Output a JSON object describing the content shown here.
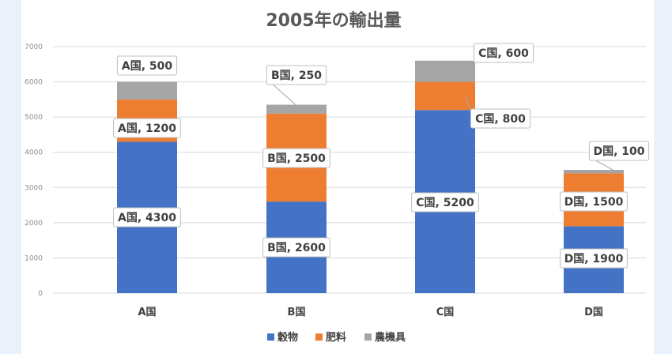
{
  "chart_data": {
    "type": "bar",
    "stacked": true,
    "title": "2005年の輸出量",
    "categories": [
      "A国",
      "B国",
      "C国",
      "D国"
    ],
    "series": [
      {
        "name": "穀物",
        "values": [
          4300,
          2600,
          5200,
          1900
        ],
        "color": "#4472c4"
      },
      {
        "name": "肥料",
        "values": [
          1200,
          2500,
          800,
          1500
        ],
        "color": "#ed7d31"
      },
      {
        "name": "農機具",
        "values": [
          500,
          250,
          600,
          100
        ],
        "color": "#a5a5a5"
      }
    ],
    "yticks": [
      "0",
      "1000",
      "2000",
      "3000",
      "4000",
      "5000",
      "6000",
      "7000"
    ],
    "ylim": [
      0,
      7000
    ],
    "grid": true,
    "legend_position": "bottom",
    "data_labels": [
      [
        "A国, 4300",
        "A国, 1200",
        "A国, 500"
      ],
      [
        "B国, 2600",
        "B国, 2500",
        "B国, 250"
      ],
      [
        "C国, 5200",
        "C国, 800",
        "C国, 600"
      ],
      [
        "D国, 1900",
        "D国, 1500",
        "D国, 100"
      ]
    ]
  }
}
